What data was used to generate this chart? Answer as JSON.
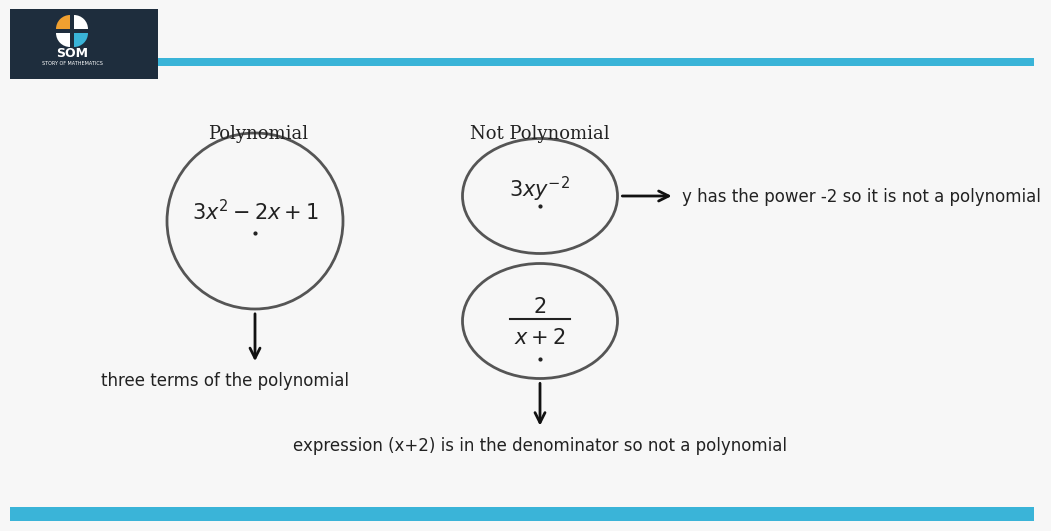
{
  "bg_color": "#f7f7f7",
  "header_color": "#1e2d3d",
  "stripe_color": "#3ab4d8",
  "title_label_poly": "Polynomial",
  "title_label_notpoly": "Not Polynomial",
  "poly_formula": "$3x^2 - 2x + 1$",
  "notpoly_formula1": "$3xy^{-2}$",
  "poly_arrow_label": "three terms of the polynomial",
  "notpoly_arrow1_label": "y has the power -2 so it is not a polynomial",
  "notpoly_arrow2_label": "expression (x+2) is in the denominator so not a polynomial",
  "circle_edgecolor": "#555555",
  "circle_linewidth": 2.0,
  "text_color": "#222222",
  "arrow_color": "#111111",
  "label_fontsize": 13,
  "formula_fontsize": 15,
  "annotation_fontsize": 12
}
